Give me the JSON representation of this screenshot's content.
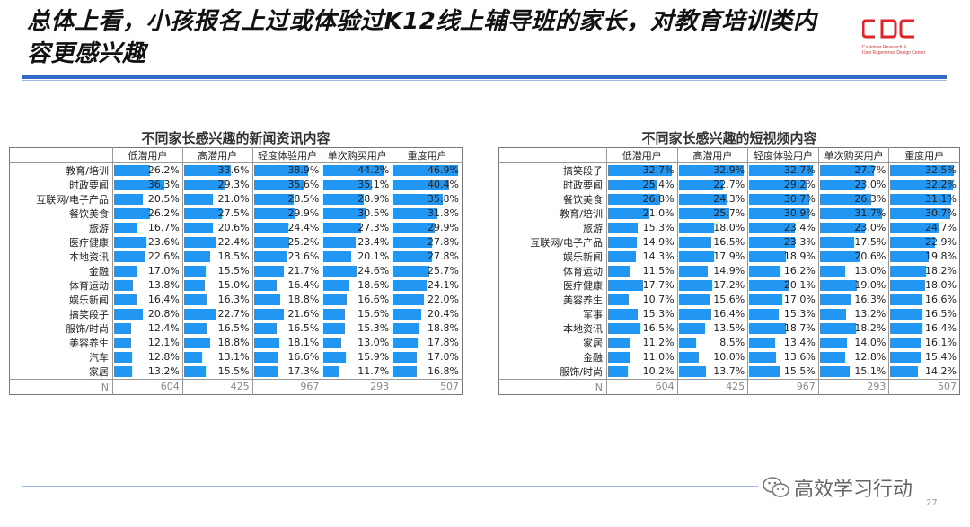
{
  "title": "总体上看，小孩报名上过或体验过K12线上辅导班的家长，对教育培训类内容更感兴趣",
  "logo": {
    "text": "CDC",
    "sub1": "Customer Research &",
    "sub2": "User Experience Design Center"
  },
  "watermark": "高效学习行动",
  "page_number": "27",
  "colors": {
    "bar": "#2196f3",
    "rule": "#2f6bc4"
  },
  "chart_data": [
    {
      "type": "table",
      "title": "不同家长感兴趣的新闻资讯内容",
      "columns": [
        "低潜用户",
        "高潜用户",
        "轻度体验用户",
        "单次购买用户",
        "重度用户"
      ],
      "rows": [
        {
          "label": "教育/培训",
          "values": [
            26.2,
            33.6,
            38.9,
            44.2,
            46.9
          ]
        },
        {
          "label": "时政要闻",
          "values": [
            36.3,
            29.3,
            35.6,
            35.1,
            40.4
          ]
        },
        {
          "label": "互联网/电子产品",
          "values": [
            20.5,
            21.0,
            28.5,
            28.9,
            35.8
          ]
        },
        {
          "label": "餐饮美食",
          "values": [
            26.2,
            27.5,
            29.9,
            30.5,
            31.8
          ]
        },
        {
          "label": "旅游",
          "values": [
            16.7,
            20.6,
            24.4,
            27.3,
            29.9
          ]
        },
        {
          "label": "医疗健康",
          "values": [
            23.6,
            22.4,
            25.2,
            23.4,
            27.8
          ]
        },
        {
          "label": "本地资讯",
          "values": [
            22.6,
            18.5,
            23.6,
            20.1,
            27.8
          ]
        },
        {
          "label": "金融",
          "values": [
            17.0,
            15.5,
            21.7,
            24.6,
            25.7
          ]
        },
        {
          "label": "体育运动",
          "values": [
            13.8,
            15.0,
            16.4,
            18.6,
            24.1
          ]
        },
        {
          "label": "娱乐新闻",
          "values": [
            16.4,
            16.3,
            18.8,
            16.6,
            22.0
          ]
        },
        {
          "label": "搞笑段子",
          "values": [
            20.8,
            22.7,
            21.6,
            15.6,
            20.4
          ]
        },
        {
          "label": "服饰/时尚",
          "values": [
            12.4,
            16.5,
            16.5,
            15.3,
            18.8
          ]
        },
        {
          "label": "美容养生",
          "values": [
            12.1,
            18.8,
            18.1,
            13.0,
            17.8
          ]
        },
        {
          "label": "汽车",
          "values": [
            12.8,
            13.1,
            16.6,
            15.9,
            17.0
          ]
        },
        {
          "label": "家居",
          "values": [
            13.2,
            15.5,
            17.3,
            11.7,
            16.8
          ]
        }
      ],
      "n_label": "N",
      "n_values": [
        "604",
        "425",
        "967",
        "293",
        "507"
      ],
      "bar_max": 48
    },
    {
      "type": "table",
      "title": "不同家长感兴趣的短视频内容",
      "columns": [
        "低潜用户",
        "高潜用户",
        "轻度体验用户",
        "单次购买用户",
        "重度用户"
      ],
      "rows": [
        {
          "label": "搞笑段子",
          "values": [
            32.7,
            32.9,
            32.7,
            27.7,
            32.5
          ]
        },
        {
          "label": "时政要闻",
          "values": [
            25.4,
            22.7,
            29.2,
            23.0,
            32.2
          ]
        },
        {
          "label": "餐饮美食",
          "values": [
            26.8,
            24.3,
            30.7,
            26.3,
            31.1
          ]
        },
        {
          "label": "教育/培训",
          "values": [
            21.0,
            25.7,
            30.9,
            31.7,
            30.7
          ]
        },
        {
          "label": "旅游",
          "values": [
            15.3,
            18.0,
            23.4,
            23.0,
            24.7
          ]
        },
        {
          "label": "互联网/电子产品",
          "values": [
            14.9,
            16.5,
            23.3,
            17.5,
            22.9
          ]
        },
        {
          "label": "娱乐新闻",
          "values": [
            14.3,
            17.9,
            18.9,
            20.6,
            19.8
          ]
        },
        {
          "label": "体育运动",
          "values": [
            11.5,
            14.9,
            16.2,
            13.0,
            18.2
          ]
        },
        {
          "label": "医疗健康",
          "values": [
            17.7,
            17.2,
            20.1,
            19.0,
            18.0
          ]
        },
        {
          "label": "美容养生",
          "values": [
            10.7,
            15.6,
            17.0,
            16.3,
            16.6
          ]
        },
        {
          "label": "军事",
          "values": [
            15.3,
            16.4,
            15.3,
            13.2,
            16.5
          ]
        },
        {
          "label": "本地资讯",
          "values": [
            16.5,
            13.5,
            18.7,
            18.2,
            16.4
          ]
        },
        {
          "label": "家居",
          "values": [
            11.2,
            8.5,
            13.4,
            14.0,
            16.1
          ]
        },
        {
          "label": "金融",
          "values": [
            11.0,
            10.0,
            13.6,
            12.8,
            15.4
          ]
        },
        {
          "label": "服饰/时尚",
          "values": [
            10.2,
            13.7,
            15.5,
            15.1,
            14.2
          ]
        }
      ],
      "n_label": "N",
      "n_values": [
        "604",
        "425",
        "967",
        "293",
        "507"
      ],
      "bar_max": 34
    }
  ]
}
